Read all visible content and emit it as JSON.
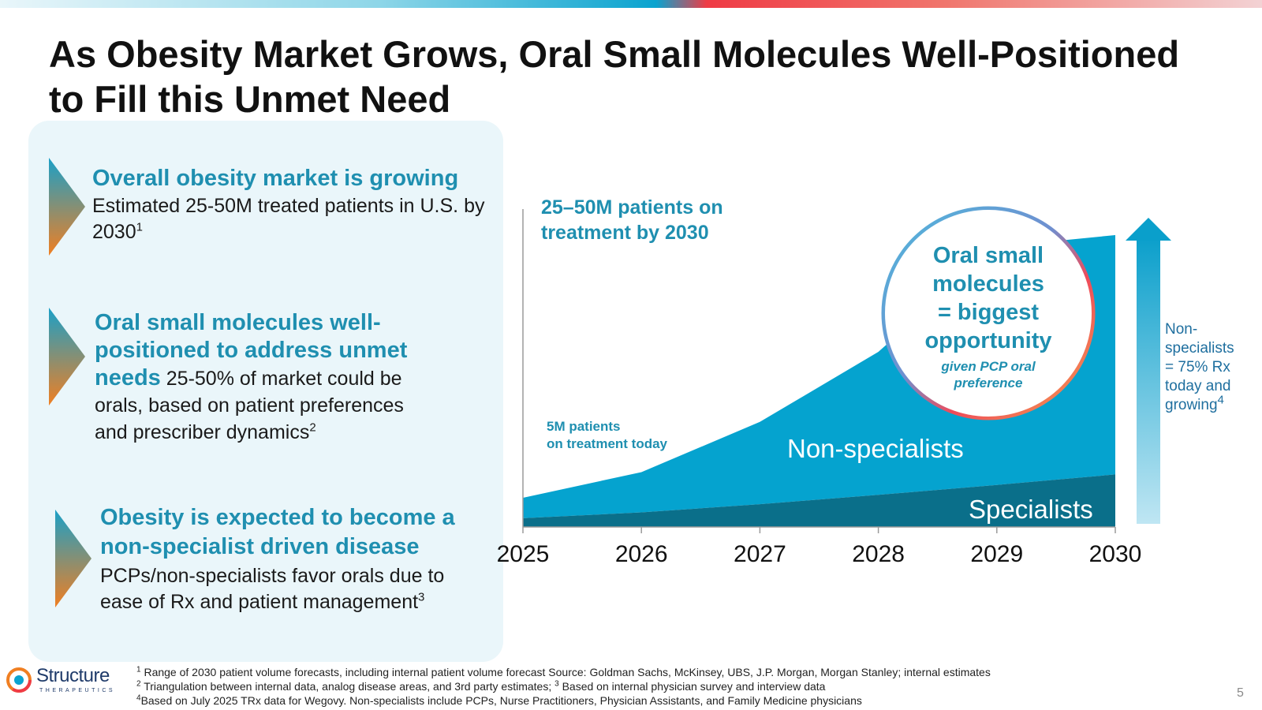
{
  "title_line1": "As Obesity Market Grows, Oral Small Molecules Well-Positioned",
  "title_line2": "to Fill this Unmet Need",
  "points": [
    {
      "heading": "Overall obesity market is growing",
      "body": "Estimated 25-50M treated patients in U.S. by 2030",
      "sup": "1"
    },
    {
      "heading": "Oral small molecules well-positioned to address unmet needs",
      "body": " 25-50% of market could be orals, based on patient preferences and prescriber dynamics",
      "sup": "2"
    },
    {
      "heading": "Obesity is expected to become a non-specialist driven disease",
      "body": "PCPs/non-specialists favor orals due to ease of Rx and patient management",
      "sup": "3"
    }
  ],
  "colors": {
    "accent": "#1f8fb0",
    "non_specialists": "#05a3cf",
    "specialists": "#0a6f8a",
    "arrow_start": "#1aa0c8",
    "arrow_end": "#f07f22"
  },
  "chart_data": {
    "type": "area",
    "x": [
      2025,
      2026,
      2027,
      2028,
      2029,
      2030
    ],
    "xlabel": "",
    "ylabel": "",
    "stacked": true,
    "ylim": [
      0,
      50
    ],
    "series": [
      {
        "name": "Specialists",
        "values": [
          1.5,
          2.5,
          3.9,
          5.5,
          7.2,
          9.0
        ]
      },
      {
        "name": "Non-specialists",
        "values": [
          3.5,
          6.9,
          14.1,
          24.5,
          40.8,
          41.0
        ]
      }
    ],
    "annotations": {
      "top": "25–50M patients on treatment by 2030",
      "today_line1": "5M patients",
      "today_line2": "on treatment today",
      "bubble_main_line1": "Oral small",
      "bubble_main_line2": "molecules",
      "bubble_main_line3": "= biggest",
      "bubble_main_line4": "opportunity",
      "bubble_sub_line1": "given PCP oral",
      "bubble_sub_line2": "preference",
      "growth_line1": "Non-",
      "growth_line2": "specialists",
      "growth_line3": "= 75% Rx",
      "growth_line4": "today and",
      "growth_line5": "growing",
      "growth_sup": "4"
    }
  },
  "footnotes": [
    {
      "sup": "1",
      "text": " Range of 2030 patient volume forecasts, including internal patient volume forecast Source: Goldman Sachs, McKinsey, UBS, J.P. Morgan, Morgan Stanley; internal estimates"
    },
    {
      "sup": "2",
      "text": " Triangulation between internal data, analog disease areas, and 3rd party estimates; ",
      "sup2": "3",
      "text2": " Based on internal physician survey and interview data"
    },
    {
      "sup": "4",
      "text": "Based on July 2025 TRx data for Wegovy. Non-specialists include PCPs, Nurse Practitioners, Physician Assistants, and Family Medicine physicians"
    }
  ],
  "logo": {
    "name": "Structure",
    "sub": "THERAPEUTICS"
  },
  "page_number": "5"
}
